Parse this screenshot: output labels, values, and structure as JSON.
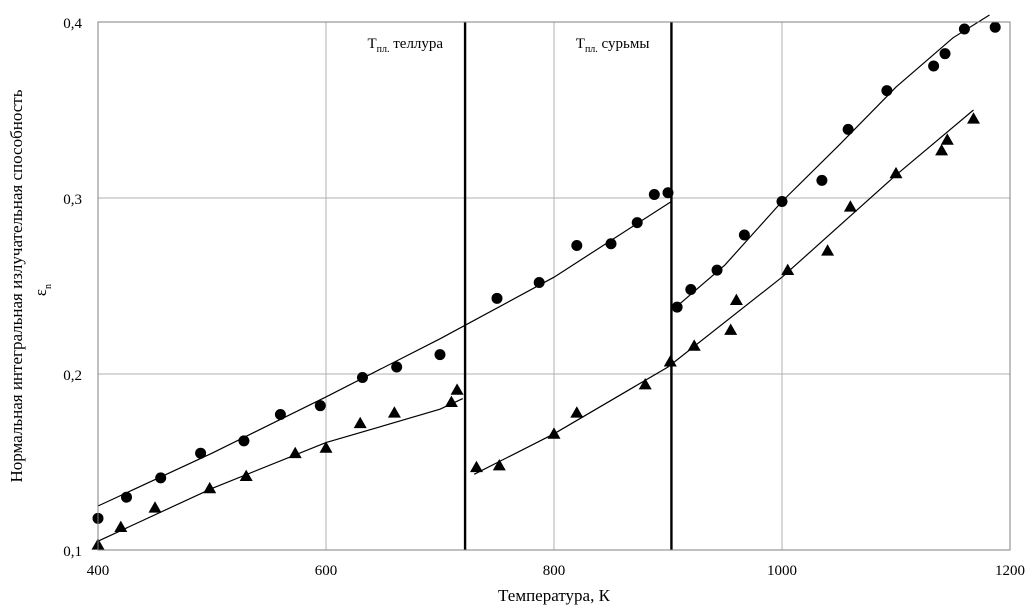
{
  "chart_data": {
    "type": "scatter",
    "xlabel": "Температура, К",
    "ylabel": "Нормальная интегральная излучательная способность",
    "ysymbol": {
      "main": "ε",
      "sub": "n"
    },
    "xlim": [
      400,
      1200
    ],
    "ylim": [
      0.1,
      0.4
    ],
    "xticks": [
      {
        "value": 400,
        "label": "400"
      },
      {
        "value": 600,
        "label": "600"
      },
      {
        "value": 800,
        "label": "800"
      },
      {
        "value": 1000,
        "label": "1000"
      },
      {
        "value": 1200,
        "label": "1200"
      }
    ],
    "yticks": [
      {
        "value": 0.1,
        "label": "0,1"
      },
      {
        "value": 0.2,
        "label": "0,2"
      },
      {
        "value": 0.3,
        "label": "0,3"
      },
      {
        "value": 0.4,
        "label": "0,4"
      }
    ],
    "grid": true,
    "vlines": [
      {
        "x": 722,
        "label_main": "T",
        "label_sub": "пл.",
        "label_rest": " теллура"
      },
      {
        "x": 903,
        "label_main": "T",
        "label_sub": "пл.",
        "label_rest": " сурьмы"
      }
    ],
    "series": [
      {
        "marker": "circle",
        "points": [
          [
            400,
            0.118
          ],
          [
            425,
            0.13
          ],
          [
            455,
            0.141
          ],
          [
            490,
            0.155
          ],
          [
            528,
            0.162
          ],
          [
            560,
            0.177
          ],
          [
            595,
            0.182
          ],
          [
            632,
            0.198
          ],
          [
            662,
            0.204
          ],
          [
            700,
            0.211
          ],
          [
            750,
            0.243
          ],
          [
            787,
            0.252
          ],
          [
            820,
            0.273
          ],
          [
            850,
            0.274
          ],
          [
            873,
            0.286
          ],
          [
            888,
            0.302
          ],
          [
            900,
            0.303
          ],
          [
            908,
            0.238
          ],
          [
            920,
            0.248
          ],
          [
            943,
            0.259
          ],
          [
            967,
            0.279
          ],
          [
            1000,
            0.298
          ],
          [
            1035,
            0.31
          ],
          [
            1058,
            0.339
          ],
          [
            1092,
            0.361
          ],
          [
            1133,
            0.375
          ],
          [
            1143,
            0.382
          ],
          [
            1160,
            0.396
          ],
          [
            1187,
            0.397
          ]
        ],
        "fits": [
          [
            [
              400,
              0.125
            ],
            [
              500,
              0.155
            ],
            [
              600,
              0.187
            ],
            [
              700,
              0.22
            ],
            [
              800,
              0.255
            ],
            [
              903,
              0.298
            ]
          ],
          [
            [
              907,
              0.238
            ],
            [
              950,
              0.262
            ],
            [
              1000,
              0.298
            ],
            [
              1050,
              0.33
            ],
            [
              1100,
              0.363
            ],
            [
              1150,
              0.391
            ],
            [
              1182,
              0.404
            ]
          ]
        ]
      },
      {
        "marker": "triangle",
        "points": [
          [
            400,
            0.103
          ],
          [
            420,
            0.113
          ],
          [
            450,
            0.124
          ],
          [
            498,
            0.135
          ],
          [
            530,
            0.142
          ],
          [
            573,
            0.155
          ],
          [
            600,
            0.158
          ],
          [
            630,
            0.172
          ],
          [
            660,
            0.178
          ],
          [
            710,
            0.184
          ],
          [
            715,
            0.191
          ],
          [
            732,
            0.147
          ],
          [
            752,
            0.148
          ],
          [
            800,
            0.166
          ],
          [
            820,
            0.178
          ],
          [
            880,
            0.194
          ],
          [
            902,
            0.207
          ],
          [
            923,
            0.216
          ],
          [
            955,
            0.225
          ],
          [
            960,
            0.242
          ],
          [
            1005,
            0.259
          ],
          [
            1040,
            0.27
          ],
          [
            1060,
            0.295
          ],
          [
            1100,
            0.314
          ],
          [
            1140,
            0.327
          ],
          [
            1145,
            0.333
          ],
          [
            1168,
            0.345
          ]
        ],
        "fits": [
          [
            [
              400,
              0.105
            ],
            [
              500,
              0.135
            ],
            [
              600,
              0.161
            ],
            [
              700,
              0.18
            ],
            [
              720,
              0.186
            ]
          ],
          [
            [
              730,
              0.143
            ],
            [
              800,
              0.166
            ],
            [
              900,
              0.204
            ],
            [
              1000,
              0.255
            ],
            [
              1100,
              0.313
            ],
            [
              1168,
              0.35
            ]
          ]
        ]
      }
    ]
  }
}
